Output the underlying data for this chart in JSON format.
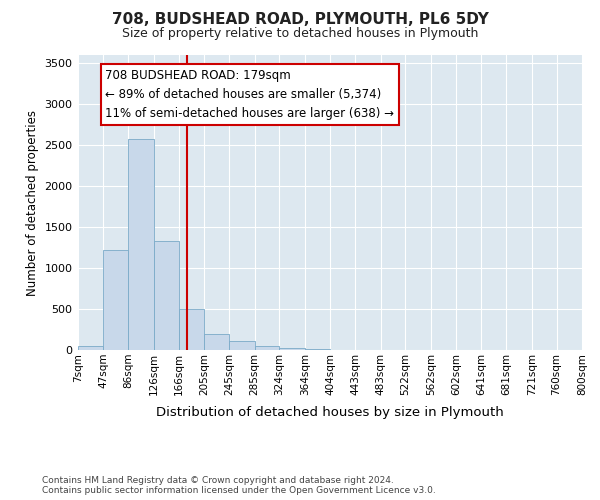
{
  "title": "708, BUDSHEAD ROAD, PLYMOUTH, PL6 5DY",
  "subtitle": "Size of property relative to detached houses in Plymouth",
  "xlabel": "Distribution of detached houses by size in Plymouth",
  "ylabel": "Number of detached properties",
  "bar_color": "#c8d8ea",
  "bar_edge_color": "#7aaac8",
  "annotation_line_color": "#cc0000",
  "annotation_text_line1": "708 BUDSHEAD ROAD: 179sqm",
  "annotation_text_line2": "← 89% of detached houses are smaller (5,374)",
  "annotation_text_line3": "11% of semi-detached houses are larger (638) →",
  "property_size": 179,
  "footer_line1": "Contains HM Land Registry data © Crown copyright and database right 2024.",
  "footer_line2": "Contains public sector information licensed under the Open Government Licence v3.0.",
  "bin_edges": [
    7,
    47,
    86,
    126,
    166,
    205,
    245,
    285,
    324,
    364,
    404,
    443,
    483,
    522,
    562,
    602,
    641,
    681,
    721,
    760,
    800
  ],
  "bar_heights": [
    50,
    1220,
    2570,
    1330,
    500,
    200,
    105,
    50,
    30,
    15,
    5,
    2,
    1,
    0,
    0,
    0,
    0,
    0,
    0,
    0
  ],
  "ylim": [
    0,
    3600
  ],
  "yticks": [
    0,
    500,
    1000,
    1500,
    2000,
    2500,
    3000,
    3500
  ],
  "plot_bg_color": "#dde8f0",
  "fig_bg_color": "#ffffff",
  "grid_color": "#ffffff"
}
